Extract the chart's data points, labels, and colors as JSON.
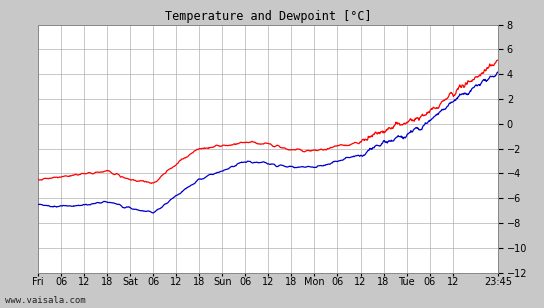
{
  "title": "Temperature and Dewpoint [°C]",
  "ylim": [
    -12,
    8
  ],
  "yticks": [
    -12,
    -10,
    -8,
    -6,
    -4,
    -2,
    0,
    2,
    4,
    6,
    8
  ],
  "bg_color": "#ffffff",
  "outer_bg": "#c8c8c8",
  "grid_color": "#b0b0b0",
  "temp_color": "#ff0000",
  "dewp_color": "#0000cc",
  "watermark": "www.vaisala.com",
  "x_labels": [
    "Fri",
    "06",
    "12",
    "18",
    "Sat",
    "06",
    "12",
    "18",
    "Sun",
    "06",
    "12",
    "18",
    "Mon",
    "06",
    "12",
    "18",
    "Tue",
    "06",
    "12",
    "23:45"
  ],
  "xtick_positions": [
    0,
    6,
    12,
    18,
    24,
    30,
    36,
    42,
    48,
    54,
    60,
    66,
    72,
    78,
    84,
    90,
    96,
    102,
    108,
    119.75
  ],
  "xlim": [
    0,
    119.75
  ],
  "t_ctrl": [
    0,
    6,
    12,
    18,
    24,
    30,
    36,
    42,
    48,
    54,
    60,
    66,
    72,
    78,
    84,
    90,
    96,
    102,
    108,
    119.75
  ],
  "v_temp": [
    -4.5,
    -4.3,
    -4.0,
    -3.8,
    -4.5,
    -4.8,
    -3.2,
    -2.0,
    -1.8,
    -1.5,
    -1.6,
    -2.1,
    -2.2,
    -1.8,
    -1.5,
    -0.5,
    0.2,
    1.0,
    2.5,
    5.0
  ],
  "v_dewp": [
    -6.5,
    -6.7,
    -6.5,
    -6.3,
    -6.8,
    -7.2,
    -5.8,
    -4.5,
    -3.8,
    -3.0,
    -3.2,
    -3.5,
    -3.5,
    -3.0,
    -2.5,
    -1.5,
    -0.8,
    0.3,
    1.8,
    4.2
  ],
  "n_points": 800,
  "title_fontsize": 8.5,
  "tick_fontsize": 7
}
